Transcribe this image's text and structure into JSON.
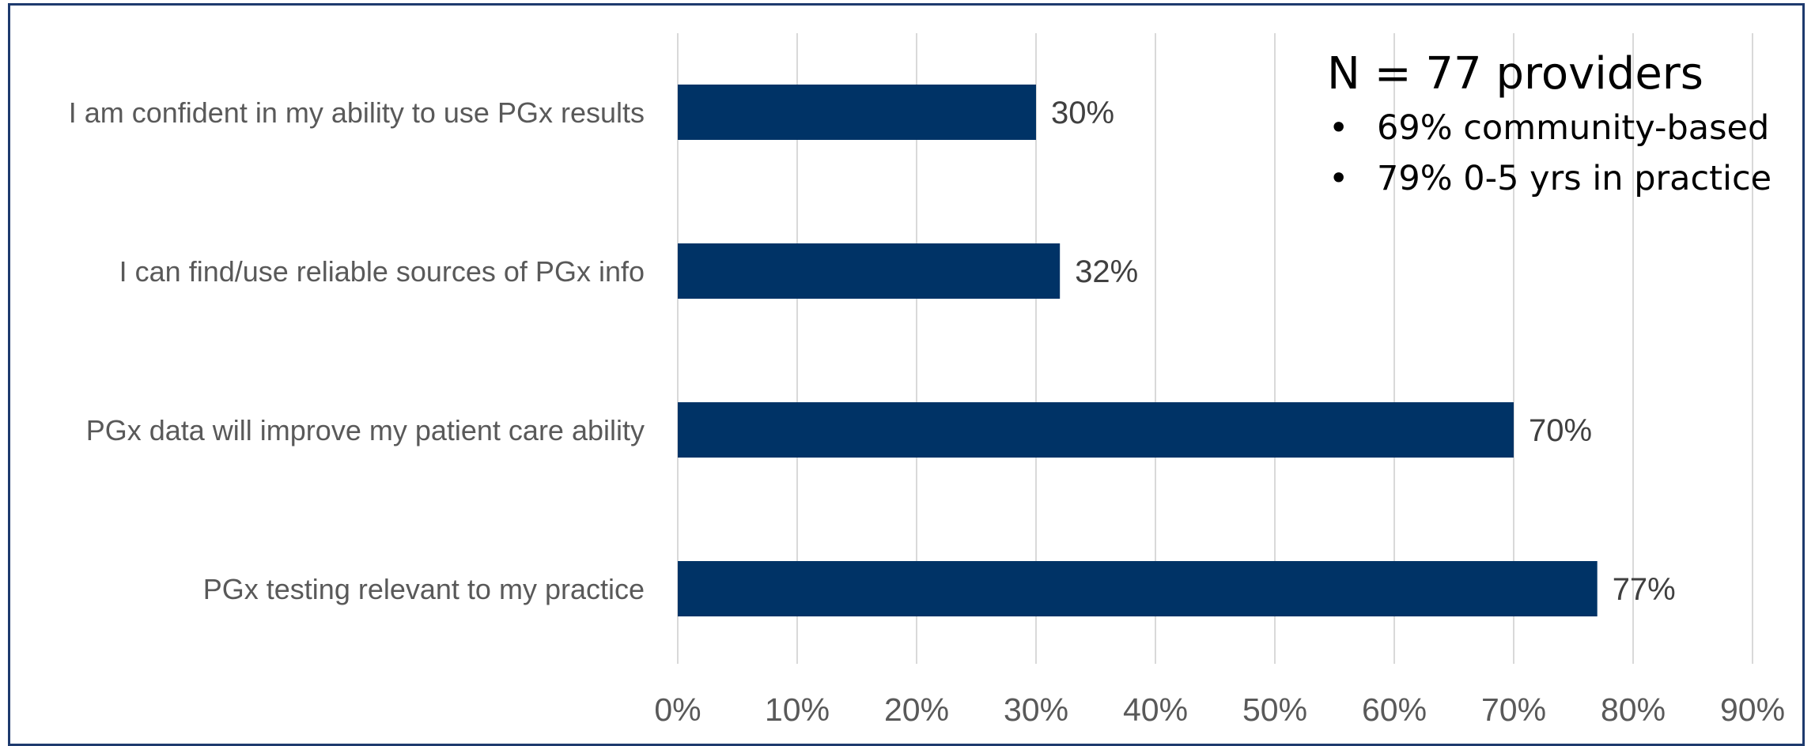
{
  "chart_data": {
    "type": "bar",
    "orientation": "horizontal",
    "categories": [
      "I am confident in my ability to use PGx results",
      "I can find/use reliable sources of PGx info",
      "PGx data will improve my patient care ability",
      "PGx testing relevant to my practice"
    ],
    "values": [
      30,
      32,
      70,
      77
    ],
    "value_labels": [
      "30%",
      "32%",
      "70%",
      "77%"
    ],
    "xlim": [
      0,
      90
    ],
    "x_ticks": [
      "0%",
      "10%",
      "20%",
      "30%",
      "40%",
      "50%",
      "60%",
      "70%",
      "80%",
      "90%"
    ],
    "grid": "vertical gridlines",
    "bar_color": "#003366",
    "gridline_color": "#d9d9d9"
  },
  "info_box": {
    "title": "N = 77 providers",
    "bullet_glyph": "•",
    "bullets": [
      "69% community-based",
      "79% 0-5 yrs in practice"
    ]
  }
}
